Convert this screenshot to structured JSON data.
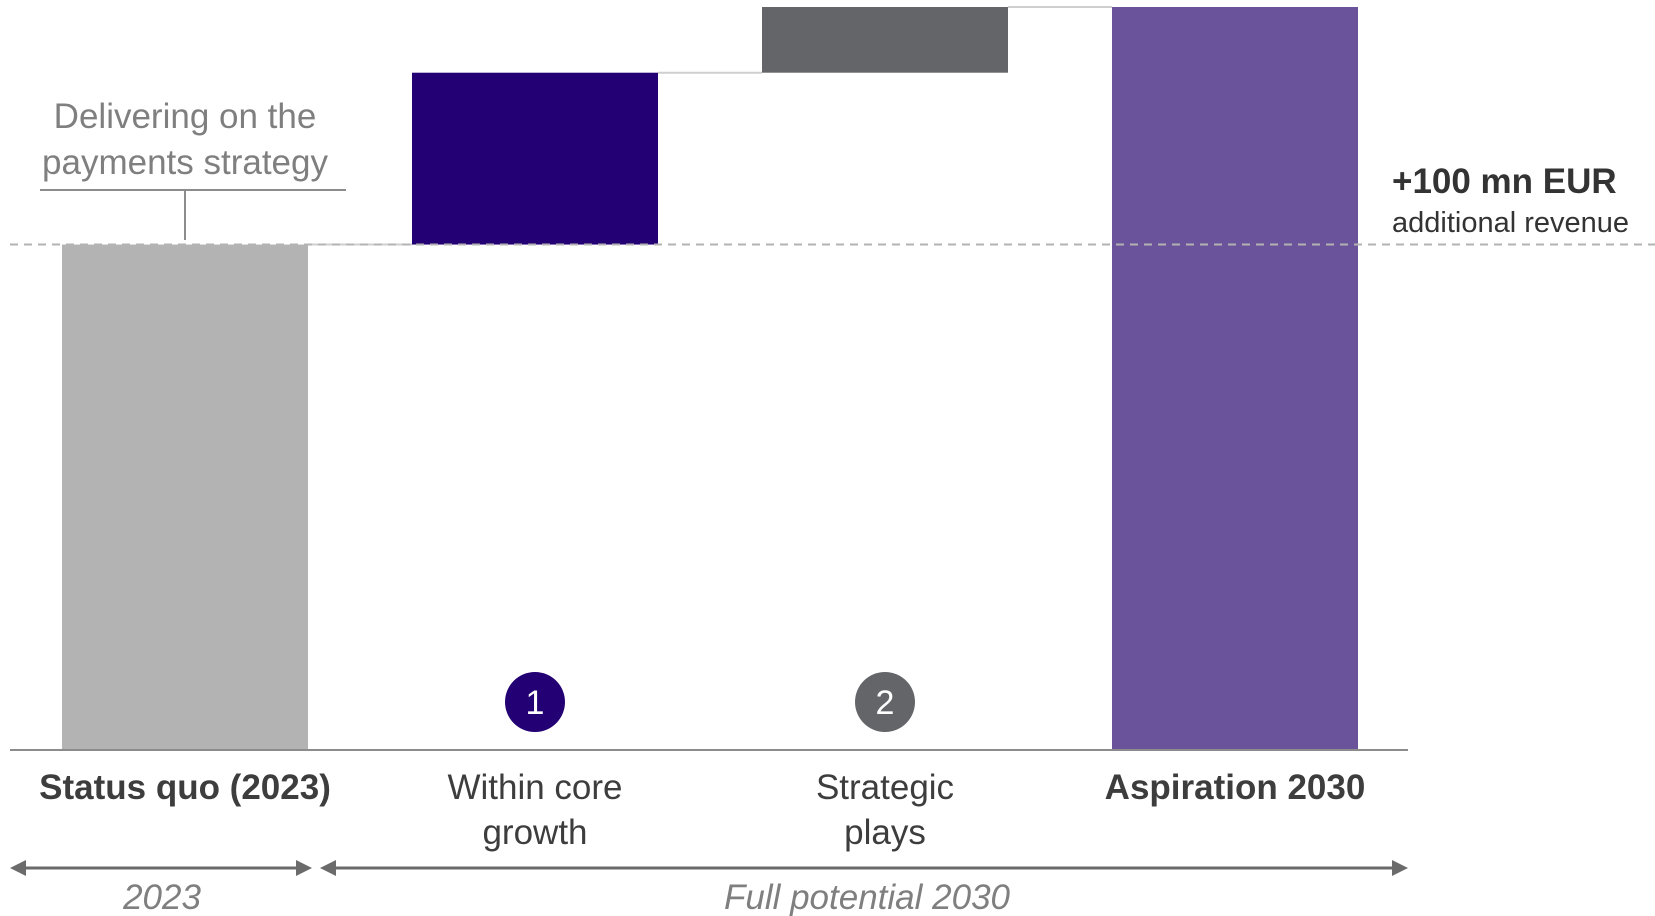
{
  "chart_data": {
    "type": "bar",
    "subtype": "waterfall",
    "categories": [
      "Status quo (2023)",
      "Within core growth",
      "Strategic plays",
      "Aspiration 2030"
    ],
    "category_bold": [
      true,
      false,
      false,
      true
    ],
    "category_lines": [
      [
        "Status quo (2023)"
      ],
      [
        "Within core",
        "growth"
      ],
      [
        "Strategic",
        "plays"
      ],
      [
        "Aspiration 2030"
      ]
    ],
    "values": [
      100,
      34,
      13,
      147
    ],
    "measures": [
      "absolute",
      "relative",
      "relative",
      "total"
    ],
    "colors": [
      "#B3B3B3",
      "#230073",
      "#636569",
      "#6A539B"
    ],
    "ylim": [
      0,
      147
    ],
    "badges": [
      {
        "category_index": 1,
        "label": "1",
        "color": "#230073"
      },
      {
        "category_index": 2,
        "label": "2",
        "color": "#636569"
      }
    ],
    "reference_line_value": 100,
    "annotations": {
      "status_quo_lines": [
        "Delivering on the",
        "payments strategy"
      ],
      "uplift_value": "+100 mn EUR",
      "uplift_label": "additional revenue"
    },
    "periods": [
      {
        "label": "2023",
        "from_index": 0,
        "to_index": 0
      },
      {
        "label": "Full potential 2030",
        "from_index": 1,
        "to_index": 3
      }
    ]
  }
}
